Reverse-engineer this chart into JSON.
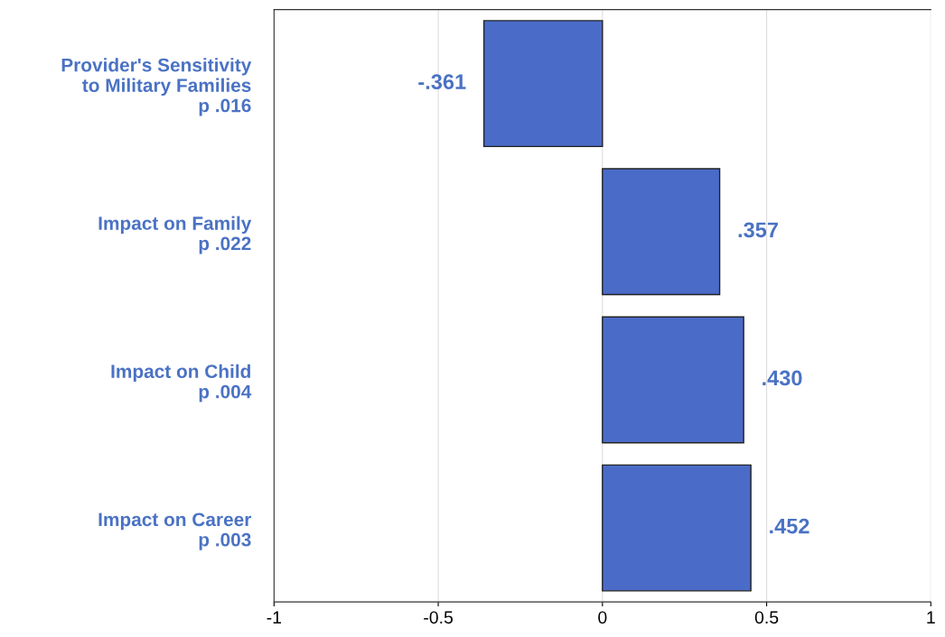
{
  "chart_data": {
    "type": "bar",
    "orientation": "horizontal",
    "categories": [
      "Provider's Sensitivity\nto Military Families\np .016",
      "Impact on Family\np .022",
      "Impact on Child\np .004",
      "Impact on Career\np .003"
    ],
    "values": [
      -0.361,
      0.357,
      0.43,
      0.452
    ],
    "value_labels": [
      "-.361",
      ".357",
      ".430",
      ".452"
    ],
    "color": "#4a6cc8",
    "xlim": [
      -1,
      1
    ],
    "xticks": [
      -1,
      -0.5,
      0,
      0.5,
      1
    ],
    "grid": "x"
  }
}
